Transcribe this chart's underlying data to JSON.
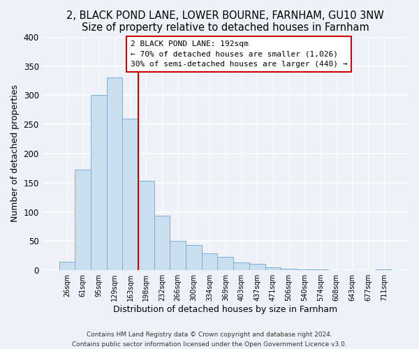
{
  "title": "2, BLACK POND LANE, LOWER BOURNE, FARNHAM, GU10 3NW",
  "subtitle": "Size of property relative to detached houses in Farnham",
  "xlabel": "Distribution of detached houses by size in Farnham",
  "ylabel": "Number of detached properties",
  "bar_labels": [
    "26sqm",
    "61sqm",
    "95sqm",
    "129sqm",
    "163sqm",
    "198sqm",
    "232sqm",
    "266sqm",
    "300sqm",
    "334sqm",
    "369sqm",
    "403sqm",
    "437sqm",
    "471sqm",
    "506sqm",
    "540sqm",
    "574sqm",
    "608sqm",
    "643sqm",
    "677sqm",
    "711sqm"
  ],
  "bar_values": [
    15,
    172,
    301,
    330,
    260,
    153,
    93,
    50,
    43,
    29,
    23,
    13,
    11,
    5,
    3,
    2,
    1,
    0,
    0,
    0,
    2
  ],
  "bar_color": "#c9dff0",
  "bar_edge_color": "#7bafd4",
  "vline_color": "#cc0000",
  "annotation_title": "2 BLACK POND LANE: 192sqm",
  "annotation_line1": "← 70% of detached houses are smaller (1,026)",
  "annotation_line2": "30% of semi-detached houses are larger (440) →",
  "annotation_box_color": "#ffffff",
  "annotation_box_edge": "#cc0000",
  "ylim": [
    0,
    400
  ],
  "yticks": [
    0,
    50,
    100,
    150,
    200,
    250,
    300,
    350,
    400
  ],
  "footer1": "Contains HM Land Registry data © Crown copyright and database right 2024.",
  "footer2": "Contains public sector information licensed under the Open Government Licence v3.0.",
  "bg_color": "#eef2f8",
  "grid_color": "#ffffff",
  "title_fontsize": 10.5,
  "subtitle_fontsize": 9.5
}
